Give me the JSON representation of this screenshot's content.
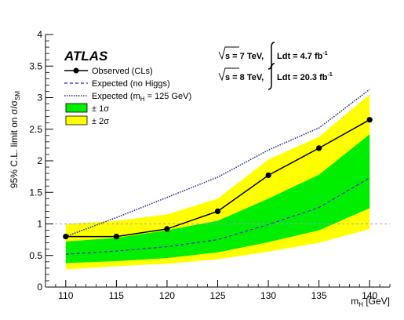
{
  "chart_data": {
    "type": "line",
    "experiment_label": "ATLAS",
    "ylabel_main": "95% C.L. limit on σ/σ",
    "ylabel_sub": "SM",
    "xlabel_main": "m",
    "xlabel_sub": "H",
    "xlabel_unit": " [GeV]",
    "xlim": [
      108,
      142
    ],
    "ylim": [
      0,
      4
    ],
    "grid": false,
    "legend_position": "top-left",
    "x": [
      110,
      115,
      120,
      125,
      130,
      135,
      140
    ],
    "x_ticks": [
      110,
      115,
      120,
      125,
      130,
      135,
      140
    ],
    "x_tick_labels": [
      "110",
      "115",
      "120",
      "125",
      "130",
      "135",
      "140"
    ],
    "y_ticks": [
      0,
      0.5,
      1,
      1.5,
      2,
      2.5,
      3,
      3.5,
      4
    ],
    "y_tick_labels": [
      "0",
      "0.5",
      "1",
      "1.5",
      "2",
      "2.5",
      "3",
      "3.5",
      "4"
    ],
    "reference_line": 1,
    "series": [
      {
        "name": "Observed (CLs)",
        "style": "solid-markers",
        "color": "#000000",
        "values": [
          0.8,
          0.8,
          0.92,
          1.2,
          1.77,
          2.2,
          2.65
        ]
      },
      {
        "name": "Expected (no Higgs)",
        "style": "dashed",
        "color": "#2323c8",
        "values": [
          0.52,
          0.57,
          0.64,
          0.75,
          0.99,
          1.26,
          1.73
        ]
      },
      {
        "name": "Expected (m",
        "name_sub": "H",
        "name_suffix": " = 125 GeV)",
        "style": "dotted",
        "color": "#2c2c80",
        "values": [
          0.8,
          1.1,
          1.42,
          1.74,
          2.17,
          2.52,
          3.13
        ]
      }
    ],
    "bands": [
      {
        "name": "± 2σ",
        "color": "#ffff00",
        "lower": [
          0.28,
          0.33,
          0.37,
          0.44,
          0.56,
          0.7,
          0.92
        ],
        "upper": [
          1.0,
          1.05,
          1.15,
          1.4,
          2.02,
          2.38,
          3.05
        ]
      },
      {
        "name": "± 1σ",
        "color": "#00ee00",
        "lower": [
          0.38,
          0.41,
          0.46,
          0.55,
          0.71,
          0.9,
          1.25
        ],
        "upper": [
          0.72,
          0.78,
          0.9,
          1.05,
          1.4,
          1.78,
          2.42
        ]
      }
    ],
    "annotations": {
      "line1_energy": "s = 7 TeV,",
      "line1_lumi": "Ldt = 4.7 fb",
      "line1_exp": "-1",
      "line2_energy": "s = 8 TeV,",
      "line2_lumi": "Ldt = 20.3 fb",
      "line2_exp": "-1"
    }
  }
}
